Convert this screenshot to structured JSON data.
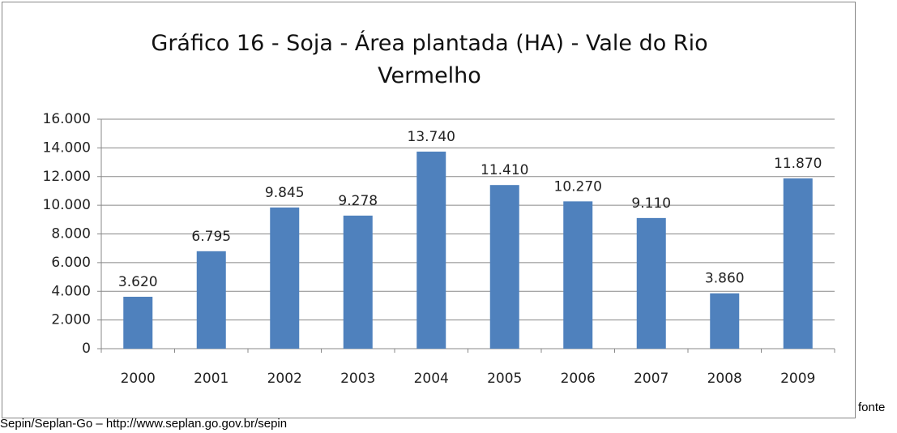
{
  "chart_data": {
    "type": "bar",
    "title": "Gráfico 16 - Soja - Área plantada (HA) - Vale do Rio Vermelho",
    "categories": [
      "2000",
      "2001",
      "2002",
      "2003",
      "2004",
      "2005",
      "2006",
      "2007",
      "2008",
      "2009"
    ],
    "values": [
      3620,
      6795,
      9845,
      9278,
      13740,
      11410,
      10270,
      9110,
      3860,
      11870
    ],
    "value_labels": [
      "3.620",
      "6.795",
      "9.845",
      "9.278",
      "13.740",
      "11.410",
      "10.270",
      "9.110",
      "3.860",
      "11.870"
    ],
    "color": "#4f81bd",
    "ylim": [
      0,
      16000
    ],
    "yticks": [
      0,
      {
        "value": 2000,
        "label": "2.000"
      },
      {
        "value": 4000,
        "label": "4.000"
      },
      {
        "value": 6000,
        "label": "6.000"
      },
      {
        "value": 8000,
        "label": "8.000"
      },
      {
        "value": 10000,
        "label": "10.000"
      },
      {
        "value": 12000,
        "label": "12.000"
      },
      {
        "value": 14000,
        "label": "14.000"
      },
      {
        "value": 16000,
        "label": "16.000"
      }
    ],
    "grid": true
  },
  "caption": {
    "label": "fonte",
    "source": "Sepin/Seplan-Go – http://www.seplan.go.gov.br/sepin"
  }
}
